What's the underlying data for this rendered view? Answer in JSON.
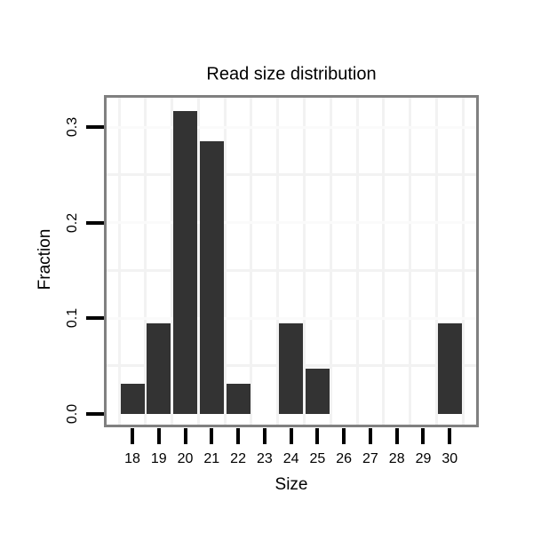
{
  "chart_data": {
    "type": "bar",
    "title": "Read size distribution",
    "xlabel": "Size",
    "ylabel": "Fraction",
    "categories": [
      "18",
      "19",
      "20",
      "21",
      "22",
      "23",
      "24",
      "25",
      "26",
      "27",
      "28",
      "29",
      "30"
    ],
    "values": [
      0.0317,
      0.0952,
      0.3175,
      0.2857,
      0.0317,
      0,
      0.0952,
      0.0476,
      0,
      0,
      0,
      0,
      0.0952
    ],
    "y_tick_labels": [
      "0.0",
      "0.1",
      "0.2",
      "0.3"
    ],
    "y_tick_values": [
      0.0,
      0.1,
      0.2,
      0.3
    ],
    "y_minor_gridlines": [
      0.05,
      0.15,
      0.25
    ],
    "ylim": [
      -0.012,
      0.333
    ],
    "legend_position": "none",
    "grid": "faint minor gridlines only, white panel",
    "colors": {
      "bar": "#333333",
      "panel_border": "#808080",
      "grid_minor": "#f2f2f2",
      "grid_major": "#fafafa",
      "tick": "#000000",
      "text": "#000000",
      "background": "#ffffff"
    }
  }
}
